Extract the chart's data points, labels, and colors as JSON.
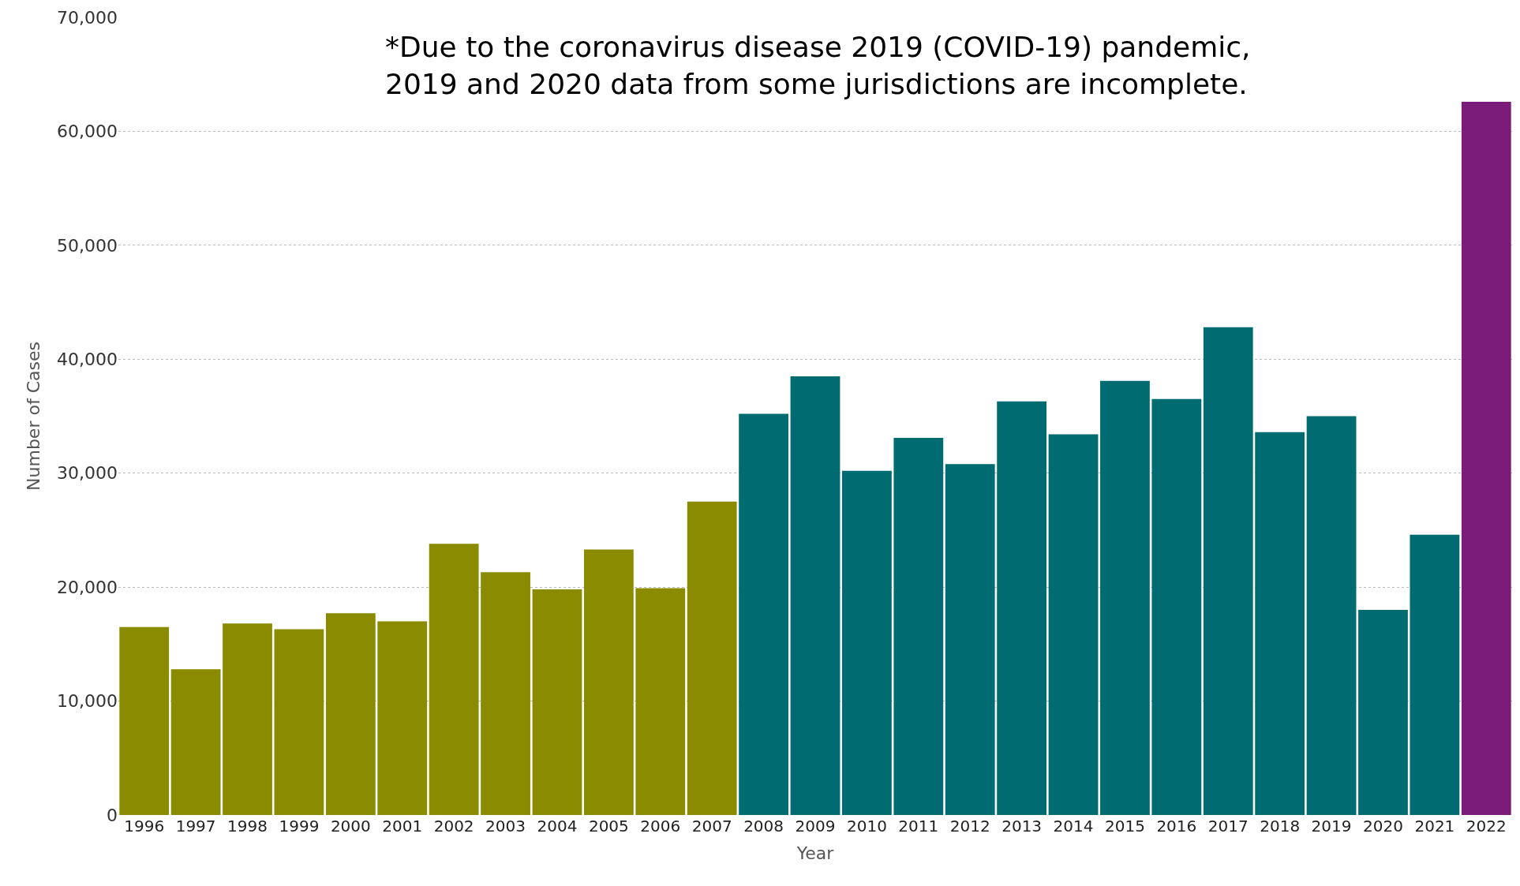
{
  "chart_data": {
    "type": "bar",
    "categories": [
      "1996",
      "1997",
      "1998",
      "1999",
      "2000",
      "2001",
      "2002",
      "2003",
      "2004",
      "2005",
      "2006",
      "2007",
      "2008",
      "2009",
      "2010",
      "2011",
      "2012",
      "2013",
      "2014",
      "2015",
      "2016",
      "2017",
      "2018",
      "2019",
      "2020",
      "2021",
      "2022"
    ],
    "values": [
      16500,
      12800,
      16800,
      16300,
      17700,
      17000,
      23800,
      21300,
      19800,
      23300,
      19900,
      27500,
      35200,
      38500,
      30200,
      33100,
      30800,
      36300,
      33400,
      38100,
      36500,
      42800,
      33600,
      35000,
      18000,
      24600,
      62600
    ],
    "colors": [
      "#8b8b00",
      "#8b8b00",
      "#8b8b00",
      "#8b8b00",
      "#8b8b00",
      "#8b8b00",
      "#8b8b00",
      "#8b8b00",
      "#8b8b00",
      "#8b8b00",
      "#8b8b00",
      "#8b8b00",
      "#006b70",
      "#006b70",
      "#006b70",
      "#006b70",
      "#006b70",
      "#006b70",
      "#006b70",
      "#006b70",
      "#006b70",
      "#006b70",
      "#006b70",
      "#006b70",
      "#006b70",
      "#006b70",
      "#7b1c7a"
    ],
    "xlabel": "Year",
    "ylabel": "Number of Cases",
    "ylim": [
      0,
      70000
    ],
    "yticks": [
      {
        "value": 0,
        "label": "0"
      },
      {
        "value": 10000,
        "label": "10,000"
      },
      {
        "value": 20000,
        "label": "20,000"
      },
      {
        "value": 30000,
        "label": "30,000"
      },
      {
        "value": 40000,
        "label": "40,000"
      },
      {
        "value": 50000,
        "label": "50,000"
      },
      {
        "value": 60000,
        "label": "60,000"
      },
      {
        "value": 70000,
        "label": "70,000"
      }
    ],
    "grid": "y",
    "annotations": [
      "*Due to the coronavirus disease 2019 (COVID-19) pandemic,\n2019 and 2020 data from some jurisdictions are incomplete."
    ]
  }
}
